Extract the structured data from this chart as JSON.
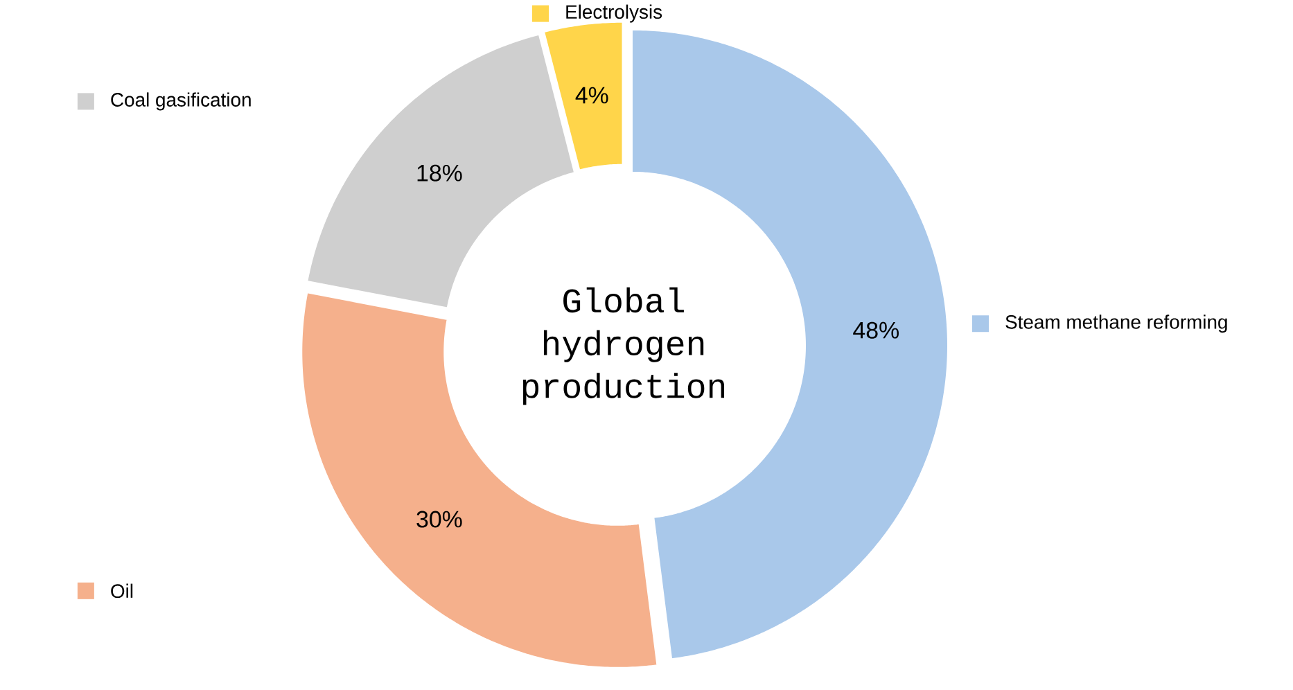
{
  "chart_data": {
    "type": "donut",
    "title": "Global hydrogen production",
    "categories": [
      "Steam methane reforming",
      "Oil",
      "Coal gasification",
      "Electrolysis"
    ],
    "values": [
      48,
      30,
      18,
      4
    ],
    "value_labels": [
      "48%",
      "30%",
      "18%",
      "4%"
    ],
    "colors": [
      "#a9c8ea",
      "#f5b08c",
      "#cfcfcf",
      "#ffd54a"
    ],
    "legend": "right"
  }
}
